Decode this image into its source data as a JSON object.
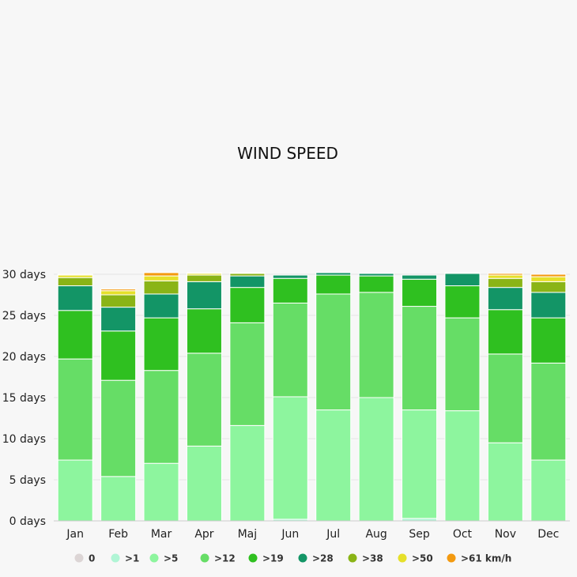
{
  "chart_data": {
    "type": "bar",
    "stacked": true,
    "title": "WIND SPEED",
    "xlabel": "",
    "ylabel": "",
    "ylim": [
      0,
      30
    ],
    "y_ticks": [
      0,
      5,
      10,
      15,
      20,
      25,
      30
    ],
    "y_tick_labels": [
      "0 days",
      "5 days",
      "10 days",
      "15 days",
      "20 days",
      "25 days",
      "30 days"
    ],
    "grid": true,
    "legend_position": "bottom",
    "categories": [
      "Jan",
      "Feb",
      "Mar",
      "Apr",
      "Maj",
      "Jun",
      "Jul",
      "Aug",
      "Sep",
      "Oct",
      "Nov",
      "Dec"
    ],
    "series": [
      {
        "name": "0",
        "color": "#dcd5d5",
        "values": [
          0,
          0,
          0,
          0,
          0,
          0,
          0,
          0,
          0,
          0,
          0,
          0
        ]
      },
      {
        "name": ">1",
        "color": "#b0f5d5",
        "values": [
          0,
          0,
          0,
          0,
          0,
          0.2,
          0,
          0,
          0.3,
          0,
          0,
          0
        ]
      },
      {
        "name": ">5",
        "color": "#8df59e",
        "values": [
          7.4,
          5.4,
          7.0,
          9.1,
          11.6,
          14.9,
          13.5,
          15.0,
          13.2,
          13.4,
          9.5,
          7.4
        ]
      },
      {
        "name": ">12",
        "color": "#66dd66",
        "values": [
          12.3,
          11.7,
          11.3,
          11.3,
          12.5,
          11.4,
          14.1,
          12.8,
          12.6,
          11.3,
          10.8,
          11.8
        ]
      },
      {
        "name": ">19",
        "color": "#2fc020",
        "values": [
          5.9,
          6.0,
          6.4,
          5.4,
          4.3,
          3.0,
          2.3,
          2.0,
          3.3,
          3.9,
          5.4,
          5.5
        ]
      },
      {
        "name": ">28",
        "color": "#139566",
        "values": [
          3.0,
          2.9,
          2.9,
          3.3,
          1.4,
          0.4,
          0.3,
          0.3,
          0.5,
          1.5,
          2.7,
          3.1
        ]
      },
      {
        "name": ">38",
        "color": "#8ab416",
        "values": [
          1.0,
          1.5,
          1.6,
          0.8,
          0.3,
          0,
          0,
          0,
          0,
          0.1,
          1.1,
          1.3
        ]
      },
      {
        "name": ">50",
        "color": "#e6e02a",
        "values": [
          0.3,
          0.5,
          0.6,
          0.2,
          0.1,
          0,
          0,
          0,
          0,
          0,
          0.4,
          0.6
        ]
      },
      {
        "name": ">61 km/h",
        "color": "#f39a10",
        "values": [
          0.1,
          0.2,
          0.4,
          0.1,
          0,
          0,
          0,
          0,
          0,
          0,
          0.2,
          0.3
        ]
      }
    ]
  }
}
